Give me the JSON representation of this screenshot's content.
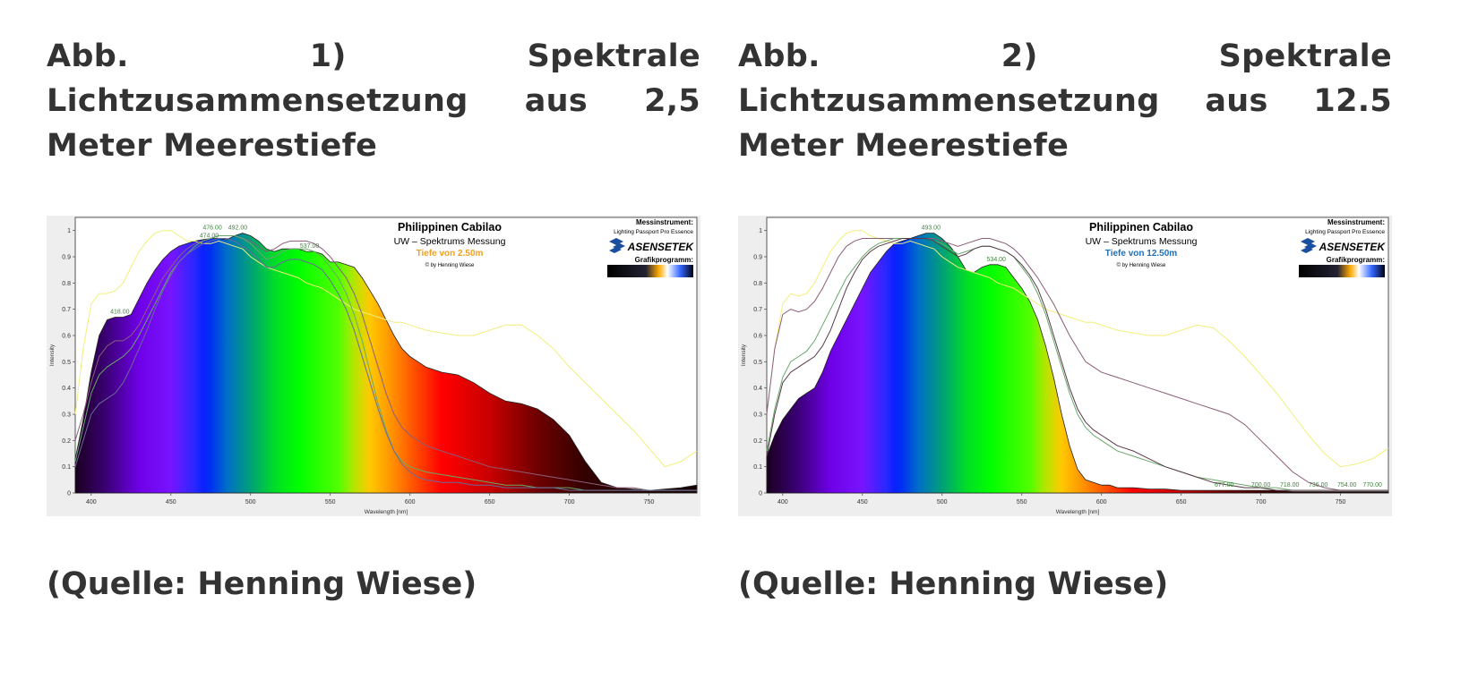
{
  "figures": [
    {
      "caption": "Abb. 1) Spektrale Lichtzusammensetzung aus 2,5 Meter Meerestiefe",
      "source": "(Quelle: Henning Wiese)"
    },
    {
      "caption": "Abb. 2) Spektrale Lichtzusammensetzung aus 12.5 Meter Meerestiefe",
      "source": "(Quelle: Henning Wiese)"
    }
  ],
  "chart_data": [
    {
      "type": "area",
      "title": "Philippinen Cabilao",
      "subtitle": "UW – Spektrums Messung",
      "depth_label": "Tiefe von 2.50m",
      "depth_color": "#f0a020",
      "credit": "© by Henning Wiese",
      "instrument_heading": "Messinstrument:",
      "instrument_name": "Lighting Passport Pro Essence",
      "brand": "ASENSETEK",
      "software_heading": "Grafikprogramm:",
      "xlabel": "Wavelength [nm]",
      "ylabel": "Intensity",
      "xlim": [
        390,
        780
      ],
      "ylim": [
        0,
        1.05
      ],
      "x_ticks": [
        400,
        450,
        500,
        550,
        600,
        650,
        700,
        750
      ],
      "y_ticks": [
        "0",
        "0.1",
        "0.2",
        "0.3",
        "0.4",
        "0.5",
        "0.6",
        "0.7",
        "0.8",
        "0.9",
        "1"
      ],
      "y_tick_values": [
        0,
        0.1,
        0.2,
        0.3,
        0.4,
        0.5,
        0.6,
        0.7,
        0.8,
        0.9,
        1
      ],
      "peak_labels": [
        {
          "x": 418,
          "y": 0.67,
          "text": "418.00"
        },
        {
          "x": 474,
          "y": 0.96,
          "text": "474.00"
        },
        {
          "x": 476,
          "y": 0.99,
          "text": "476.00"
        },
        {
          "x": 492,
          "y": 0.99,
          "text": "492.00"
        },
        {
          "x": 537,
          "y": 0.92,
          "text": "537.00"
        }
      ],
      "main_series": {
        "x": [
          390,
          395,
          400,
          405,
          410,
          415,
          420,
          425,
          430,
          435,
          440,
          445,
          450,
          455,
          460,
          465,
          470,
          475,
          480,
          485,
          490,
          495,
          500,
          505,
          510,
          515,
          520,
          525,
          530,
          535,
          540,
          545,
          550,
          555,
          560,
          565,
          570,
          575,
          580,
          585,
          590,
          595,
          600,
          605,
          610,
          620,
          630,
          640,
          650,
          660,
          670,
          680,
          690,
          700,
          710,
          720,
          730,
          740,
          750,
          760,
          770,
          780
        ],
        "y": [
          0.13,
          0.28,
          0.46,
          0.6,
          0.66,
          0.67,
          0.67,
          0.68,
          0.74,
          0.8,
          0.85,
          0.89,
          0.92,
          0.94,
          0.95,
          0.96,
          0.965,
          0.97,
          0.97,
          0.965,
          0.98,
          0.99,
          0.98,
          0.96,
          0.93,
          0.92,
          0.93,
          0.93,
          0.93,
          0.92,
          0.92,
          0.91,
          0.88,
          0.88,
          0.87,
          0.86,
          0.82,
          0.77,
          0.72,
          0.66,
          0.6,
          0.55,
          0.52,
          0.5,
          0.48,
          0.46,
          0.45,
          0.42,
          0.38,
          0.35,
          0.34,
          0.32,
          0.28,
          0.22,
          0.12,
          0.04,
          0.02,
          0.015,
          0.01,
          0.015,
          0.02,
          0.03
        ]
      },
      "overlay_lines": [
        {
          "color": "#f2ee7a",
          "y": [
            0.3,
            0.55,
            0.72,
            0.76,
            0.76,
            0.77,
            0.8,
            0.86,
            0.92,
            0.96,
            0.99,
            1.0,
            1.0,
            0.98,
            0.96,
            0.96,
            0.95,
            0.95,
            0.96,
            0.95,
            0.94,
            0.93,
            0.9,
            0.88,
            0.86,
            0.85,
            0.84,
            0.83,
            0.82,
            0.8,
            0.79,
            0.78,
            0.76,
            0.74,
            0.72,
            0.7,
            0.69,
            0.68,
            0.67,
            0.66,
            0.65,
            0.65,
            0.64,
            0.63,
            0.62,
            0.61,
            0.6,
            0.6,
            0.62,
            0.64,
            0.64,
            0.6,
            0.55,
            0.48,
            0.42,
            0.36,
            0.3,
            0.24,
            0.17,
            0.1,
            0.12,
            0.16
          ]
        },
        {
          "color": "#8b5e7a",
          "y": [
            0.2,
            0.3,
            0.42,
            0.52,
            0.56,
            0.58,
            0.58,
            0.6,
            0.64,
            0.7,
            0.76,
            0.82,
            0.86,
            0.9,
            0.93,
            0.95,
            0.96,
            0.97,
            0.98,
            0.98,
            0.98,
            0.97,
            0.96,
            0.94,
            0.92,
            0.93,
            0.95,
            0.96,
            0.96,
            0.96,
            0.95,
            0.93,
            0.9,
            0.86,
            0.82,
            0.76,
            0.68,
            0.58,
            0.48,
            0.38,
            0.3,
            0.25,
            0.22,
            0.2,
            0.18,
            0.16,
            0.14,
            0.12,
            0.1,
            0.09,
            0.08,
            0.07,
            0.06,
            0.05,
            0.04,
            0.03,
            0.02,
            0.02,
            0.01,
            0.01,
            0.01,
            0.01
          ]
        },
        {
          "color": "#6aa86a",
          "y": [
            0.12,
            0.25,
            0.38,
            0.45,
            0.48,
            0.5,
            0.52,
            0.55,
            0.6,
            0.66,
            0.72,
            0.78,
            0.84,
            0.88,
            0.91,
            0.94,
            0.96,
            0.97,
            0.98,
            0.98,
            0.98,
            0.97,
            0.95,
            0.92,
            0.89,
            0.9,
            0.92,
            0.93,
            0.93,
            0.93,
            0.92,
            0.9,
            0.86,
            0.82,
            0.76,
            0.68,
            0.58,
            0.46,
            0.34,
            0.24,
            0.16,
            0.12,
            0.1,
            0.09,
            0.08,
            0.07,
            0.06,
            0.05,
            0.04,
            0.03,
            0.03,
            0.02,
            0.02,
            0.02,
            0.01,
            0.01,
            0.01,
            0.01,
            0.01,
            0.01,
            0.01,
            0.01
          ]
        },
        {
          "color": "#6a6a9a",
          "y": [
            0.1,
            0.2,
            0.3,
            0.34,
            0.36,
            0.38,
            0.42,
            0.48,
            0.55,
            0.62,
            0.7,
            0.77,
            0.83,
            0.88,
            0.91,
            0.93,
            0.95,
            0.96,
            0.97,
            0.97,
            0.96,
            0.94,
            0.92,
            0.89,
            0.86,
            0.86,
            0.88,
            0.89,
            0.89,
            0.88,
            0.87,
            0.85,
            0.81,
            0.76,
            0.7,
            0.62,
            0.52,
            0.42,
            0.32,
            0.23,
            0.16,
            0.11,
            0.08,
            0.06,
            0.05,
            0.04,
            0.04,
            0.03,
            0.03,
            0.02,
            0.02,
            0.02,
            0.02,
            0.01,
            0.01,
            0.01,
            0.01,
            0.01,
            0.01,
            0.01,
            0.01,
            0.01
          ]
        }
      ]
    },
    {
      "type": "area",
      "title": "Philippinen Cabilao",
      "subtitle": "UW – Spektrums Messung",
      "depth_label": "Tiefe von 12.50m",
      "depth_color": "#1f6fb5",
      "credit": "© by Henning Wiese",
      "instrument_heading": "Messinstrument:",
      "instrument_name": "Lighting Passport Pro Essence",
      "brand": "ASENSETEK",
      "software_heading": "Grafikprogramm:",
      "xlabel": "Wavelength [nm]",
      "ylabel": "Intensity",
      "xlim": [
        390,
        780
      ],
      "ylim": [
        0,
        1.05
      ],
      "x_ticks": [
        400,
        450,
        500,
        550,
        600,
        650,
        700,
        750
      ],
      "y_ticks": [
        "0",
        "0.1",
        "0.2",
        "0.3",
        "0.4",
        "0.5",
        "0.6",
        "0.7",
        "0.8",
        "0.9",
        "1"
      ],
      "y_tick_values": [
        0,
        0.1,
        0.2,
        0.3,
        0.4,
        0.5,
        0.6,
        0.7,
        0.8,
        0.9,
        1
      ],
      "peak_labels": [
        {
          "x": 493,
          "y": 0.99,
          "text": "493.00"
        },
        {
          "x": 534,
          "y": 0.87,
          "text": "534.00"
        },
        {
          "x": 677,
          "y": 0.01,
          "text": "677.00"
        },
        {
          "x": 700,
          "y": 0.01,
          "text": "700.00"
        },
        {
          "x": 718,
          "y": 0.01,
          "text": "718.00"
        },
        {
          "x": 736,
          "y": 0.01,
          "text": "736.00"
        },
        {
          "x": 754,
          "y": 0.01,
          "text": "754.00"
        },
        {
          "x": 770,
          "y": 0.01,
          "text": "770.00"
        }
      ],
      "main_series": {
        "x": [
          390,
          395,
          400,
          405,
          410,
          415,
          420,
          425,
          430,
          435,
          440,
          445,
          450,
          455,
          460,
          465,
          470,
          475,
          480,
          485,
          490,
          495,
          500,
          505,
          510,
          515,
          520,
          525,
          530,
          535,
          540,
          545,
          550,
          555,
          560,
          565,
          570,
          575,
          580,
          585,
          590,
          595,
          600,
          605,
          610,
          620,
          630,
          640,
          650,
          660,
          670,
          680,
          690,
          700,
          710,
          720,
          730,
          740,
          750,
          760,
          770,
          780
        ],
        "y": [
          0.14,
          0.22,
          0.28,
          0.32,
          0.36,
          0.38,
          0.4,
          0.46,
          0.54,
          0.6,
          0.66,
          0.72,
          0.78,
          0.84,
          0.88,
          0.92,
          0.95,
          0.96,
          0.97,
          0.98,
          0.99,
          0.99,
          0.97,
          0.94,
          0.9,
          0.85,
          0.84,
          0.86,
          0.87,
          0.87,
          0.86,
          0.82,
          0.78,
          0.73,
          0.66,
          0.56,
          0.44,
          0.3,
          0.18,
          0.09,
          0.05,
          0.04,
          0.03,
          0.03,
          0.02,
          0.02,
          0.015,
          0.015,
          0.01,
          0.01,
          0.01,
          0.01,
          0.01,
          0.01,
          0.01,
          0.005,
          0.005,
          0.005,
          0.005,
          0.005,
          0.005,
          0.005
        ]
      },
      "overlay_lines": [
        {
          "color": "#f2ee7a",
          "y": [
            0.3,
            0.55,
            0.72,
            0.76,
            0.75,
            0.76,
            0.8,
            0.86,
            0.92,
            0.96,
            0.99,
            1.0,
            1.0,
            0.98,
            0.97,
            0.96,
            0.95,
            0.95,
            0.96,
            0.95,
            0.94,
            0.93,
            0.9,
            0.88,
            0.86,
            0.85,
            0.84,
            0.83,
            0.82,
            0.8,
            0.79,
            0.78,
            0.76,
            0.74,
            0.72,
            0.7,
            0.69,
            0.68,
            0.67,
            0.66,
            0.65,
            0.65,
            0.64,
            0.63,
            0.62,
            0.61,
            0.6,
            0.6,
            0.62,
            0.64,
            0.63,
            0.58,
            0.52,
            0.45,
            0.38,
            0.3,
            0.22,
            0.15,
            0.1,
            0.11,
            0.13,
            0.17
          ]
        },
        {
          "color": "#8b5e7a",
          "y": [
            0.3,
            0.55,
            0.68,
            0.7,
            0.69,
            0.7,
            0.73,
            0.78,
            0.84,
            0.9,
            0.94,
            0.96,
            0.97,
            0.97,
            0.97,
            0.97,
            0.97,
            0.97,
            0.97,
            0.97,
            0.97,
            0.97,
            0.96,
            0.95,
            0.94,
            0.95,
            0.96,
            0.97,
            0.97,
            0.96,
            0.95,
            0.93,
            0.9,
            0.86,
            0.82,
            0.77,
            0.72,
            0.66,
            0.6,
            0.55,
            0.5,
            0.48,
            0.46,
            0.45,
            0.44,
            0.42,
            0.4,
            0.38,
            0.36,
            0.34,
            0.32,
            0.3,
            0.26,
            0.2,
            0.14,
            0.08,
            0.04,
            0.02,
            0.01,
            0.01,
            0.01,
            0.01
          ]
        },
        {
          "color": "#6aa86a",
          "y": [
            0.16,
            0.32,
            0.44,
            0.5,
            0.52,
            0.54,
            0.58,
            0.64,
            0.7,
            0.76,
            0.82,
            0.86,
            0.9,
            0.93,
            0.95,
            0.96,
            0.97,
            0.97,
            0.97,
            0.97,
            0.97,
            0.96,
            0.95,
            0.93,
            0.91,
            0.92,
            0.93,
            0.94,
            0.94,
            0.93,
            0.92,
            0.9,
            0.86,
            0.82,
            0.76,
            0.68,
            0.58,
            0.48,
            0.38,
            0.3,
            0.25,
            0.22,
            0.2,
            0.18,
            0.16,
            0.14,
            0.12,
            0.1,
            0.08,
            0.06,
            0.05,
            0.04,
            0.03,
            0.02,
            0.02,
            0.01,
            0.01,
            0.01,
            0.01,
            0.01,
            0.01,
            0.01
          ]
        },
        {
          "color": "#5a3a4a",
          "y": [
            0.14,
            0.3,
            0.42,
            0.46,
            0.48,
            0.5,
            0.52,
            0.56,
            0.62,
            0.7,
            0.78,
            0.84,
            0.89,
            0.92,
            0.94,
            0.95,
            0.96,
            0.97,
            0.97,
            0.97,
            0.97,
            0.96,
            0.94,
            0.92,
            0.9,
            0.91,
            0.93,
            0.94,
            0.94,
            0.93,
            0.92,
            0.9,
            0.87,
            0.83,
            0.78,
            0.7,
            0.6,
            0.5,
            0.4,
            0.32,
            0.27,
            0.24,
            0.22,
            0.2,
            0.18,
            0.16,
            0.13,
            0.1,
            0.08,
            0.06,
            0.04,
            0.03,
            0.02,
            0.02,
            0.01,
            0.01,
            0.01,
            0.01,
            0.01,
            0.01,
            0.01,
            0.01
          ]
        }
      ]
    }
  ]
}
